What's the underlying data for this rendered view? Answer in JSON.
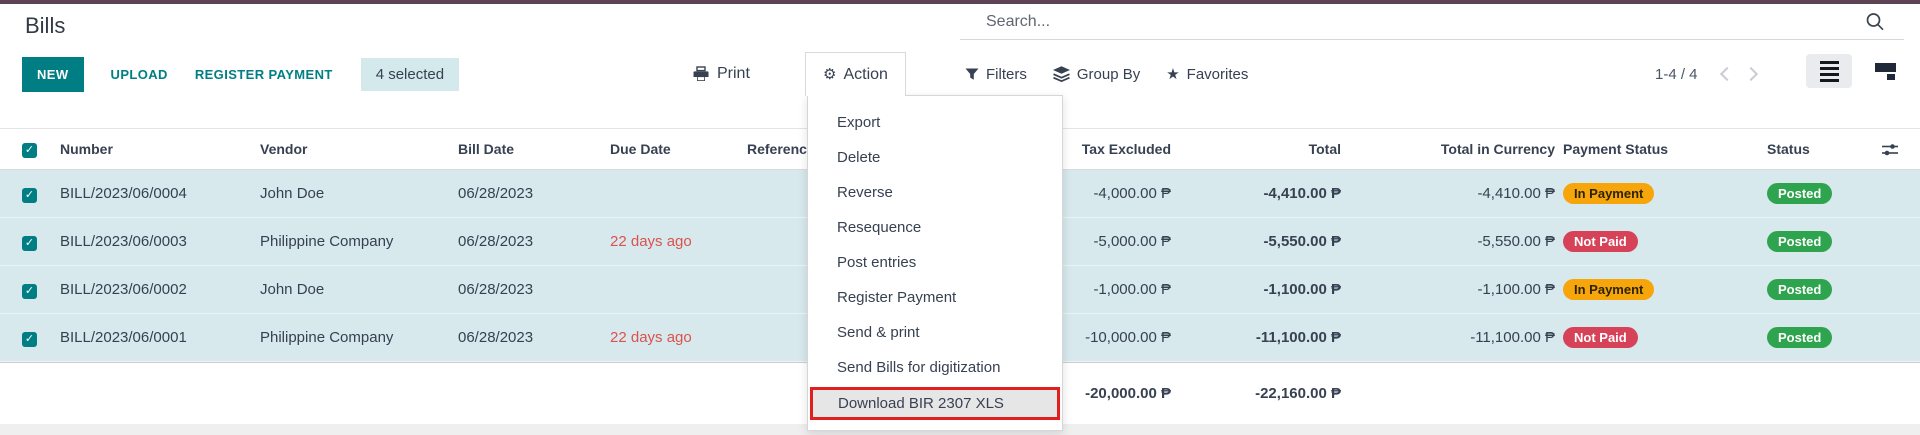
{
  "header": {
    "title": "Bills",
    "search_placeholder": "Search..."
  },
  "toolbar": {
    "new": "NEW",
    "upload": "UPLOAD",
    "register_payment": "REGISTER PAYMENT",
    "selected_count": "4 selected",
    "print": "Print",
    "action": "Action",
    "filters": "Filters",
    "group_by": "Group By",
    "favorites": "Favorites",
    "pager": "1-4 / 4"
  },
  "action_menu": {
    "items": [
      "Export",
      "Delete",
      "Reverse",
      "Resequence",
      "Post entries",
      "Register Payment",
      "Send & print",
      "Send Bills for digitization",
      "Download BIR 2307 XLS"
    ],
    "highlighted": "Download BIR 2307 XLS"
  },
  "table": {
    "columns": [
      "Number",
      "Vendor",
      "Bill Date",
      "Due Date",
      "Reference",
      "Tax Excluded",
      "Total",
      "Total in Currency",
      "Payment Status",
      "Status"
    ],
    "rows": [
      {
        "selected": true,
        "number": "BILL/2023/06/0004",
        "vendor": "John Doe",
        "bill_date": "06/28/2023",
        "due_date": "",
        "reference": "",
        "tax_excluded": "-4,000.00 ₱",
        "total": "-4,410.00 ₱",
        "total_in_currency": "-4,410.00 ₱",
        "payment_status": "In Payment",
        "status": "Posted"
      },
      {
        "selected": true,
        "number": "BILL/2023/06/0003",
        "vendor": "Philippine Company",
        "bill_date": "06/28/2023",
        "due_date": "22 days ago",
        "reference": "",
        "tax_excluded": "-5,000.00 ₱",
        "total": "-5,550.00 ₱",
        "total_in_currency": "-5,550.00 ₱",
        "payment_status": "Not Paid",
        "status": "Posted"
      },
      {
        "selected": true,
        "number": "BILL/2023/06/0002",
        "vendor": "John Doe",
        "bill_date": "06/28/2023",
        "due_date": "",
        "reference": "",
        "tax_excluded": "-1,000.00 ₱",
        "total": "-1,100.00 ₱",
        "total_in_currency": "-1,100.00 ₱",
        "payment_status": "In Payment",
        "status": "Posted"
      },
      {
        "selected": true,
        "number": "BILL/2023/06/0001",
        "vendor": "Philippine Company",
        "bill_date": "06/28/2023",
        "due_date": "22 days ago",
        "reference": "",
        "tax_excluded": "-10,000.00 ₱",
        "total": "-11,100.00 ₱",
        "total_in_currency": "-11,100.00 ₱",
        "payment_status": "Not Paid",
        "status": "Posted"
      }
    ],
    "footer": {
      "tax_excluded": "-20,000.00 ₱",
      "total": "-22,160.00 ₱"
    }
  },
  "colors": {
    "topbar": "#5d4455",
    "accent": "#017e84",
    "selected_row": "#d7e9ed",
    "in_payment_badge": "#f6a50b",
    "not_paid_badge": "#d64257",
    "posted_badge": "#2fa44f",
    "overdue_text": "#d9534f",
    "highlight_border": "#e01f1f"
  }
}
